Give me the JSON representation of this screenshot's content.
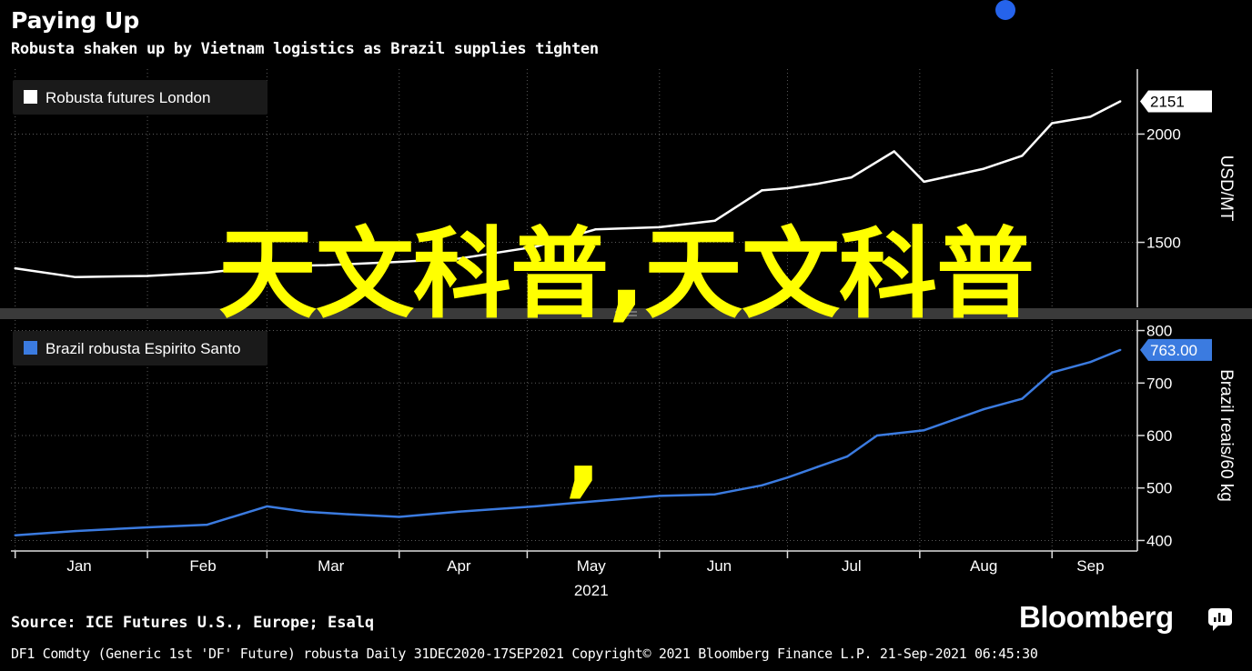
{
  "header": {
    "title": "Paying Up",
    "subtitle": "Robusta shaken up by Vietnam logistics as Brazil supplies tighten"
  },
  "overlay_text": {
    "main": "天文科普,天文科普",
    "comma": ","
  },
  "footer": {
    "source": "Source: ICE Futures U.S., Europe; Esalq",
    "info": "DF1 Comdty (Generic 1st 'DF' Future) robusta  Daily 31DEC2020-17SEP2021  Copyright© 2021 Bloomberg Finance L.P.  21-Sep-2021 06:45:30",
    "logo": "Bloomberg"
  },
  "colors": {
    "background": "#000000",
    "grid": "#5a5a5a",
    "series_top": "#ffffff",
    "series_bottom": "#3b7be0",
    "overlay": "#ffff00",
    "dot": "#2563eb"
  },
  "chart_data": [
    {
      "type": "line",
      "series": [
        {
          "name": "Robusta futures London",
          "x": [
            "2021-01-01",
            "2021-01-15",
            "2021-02-01",
            "2021-02-15",
            "2021-03-01",
            "2021-03-15",
            "2021-04-01",
            "2021-04-15",
            "2021-05-03",
            "2021-05-17",
            "2021-06-01",
            "2021-06-14",
            "2021-06-25",
            "2021-07-01",
            "2021-07-08",
            "2021-07-16",
            "2021-07-26",
            "2021-08-02",
            "2021-08-16",
            "2021-08-25",
            "2021-09-01",
            "2021-09-10",
            "2021-09-17"
          ],
          "values": [
            1380,
            1340,
            1345,
            1360,
            1390,
            1395,
            1410,
            1425,
            1480,
            1560,
            1570,
            1600,
            1740,
            1750,
            1770,
            1800,
            1920,
            1780,
            1840,
            1900,
            2050,
            2080,
            2151
          ]
        }
      ],
      "yunit": "USD/MT",
      "ylim": [
        1200,
        2300
      ],
      "yticks": [
        1500,
        2000
      ],
      "last_value_label": "2151",
      "legend": "top-left",
      "grid": true
    },
    {
      "type": "line",
      "series": [
        {
          "name": "Brazil robusta Espirito Santo",
          "x": [
            "2021-01-01",
            "2021-01-15",
            "2021-02-01",
            "2021-02-15",
            "2021-03-01",
            "2021-03-10",
            "2021-03-20",
            "2021-04-01",
            "2021-04-15",
            "2021-05-03",
            "2021-05-17",
            "2021-06-01",
            "2021-06-14",
            "2021-06-25",
            "2021-07-01",
            "2021-07-08",
            "2021-07-15",
            "2021-07-22",
            "2021-08-02",
            "2021-08-16",
            "2021-08-25",
            "2021-09-01",
            "2021-09-10",
            "2021-09-17"
          ],
          "values": [
            410,
            418,
            425,
            430,
            465,
            455,
            450,
            445,
            455,
            465,
            475,
            485,
            488,
            505,
            520,
            540,
            560,
            600,
            610,
            650,
            670,
            720,
            740,
            763
          ]
        }
      ],
      "yunit": "Brazil reais/60 kg",
      "ylim": [
        380,
        820
      ],
      "yticks": [
        400,
        500,
        600,
        700,
        800
      ],
      "last_value_label": "763.00",
      "legend": "top-left",
      "grid": true
    }
  ],
  "x_axis": {
    "tick_labels": [
      "Jan",
      "Feb",
      "Mar",
      "Apr",
      "May",
      "Jun",
      "Jul",
      "Aug",
      "Sep"
    ],
    "year_label": "2021"
  }
}
